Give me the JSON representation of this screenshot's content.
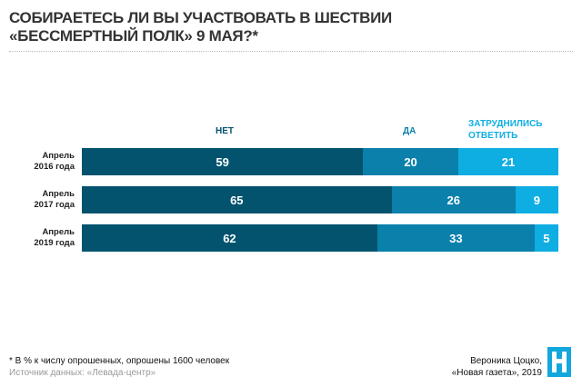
{
  "chart_data": {
    "type": "bar",
    "stacked": true,
    "orientation": "horizontal",
    "title": "СОБИРАЕТЕСЬ ЛИ ВЫ УЧАСТВОВАТЬ В ШЕСТВИИ «БЕССМЕРТНЫЙ ПОЛК» 9 МАЯ?*",
    "title_lines": [
      "СОБИРАЕТЕСЬ ЛИ ВЫ УЧАСТВОВАТЬ В ШЕСТВИИ",
      "«БЕССМЕРТНЫЙ ПОЛК» 9 МАЯ?*"
    ],
    "categories": [
      [
        "Апрель",
        "2016 года"
      ],
      [
        "Апрель",
        "2017 года"
      ],
      [
        "Апрель",
        "2019 года"
      ]
    ],
    "series": [
      {
        "name": "НЕТ",
        "color": "#03536f",
        "values": [
          59,
          65,
          62
        ]
      },
      {
        "name": "ДА",
        "color": "#0a80ab",
        "values": [
          20,
          26,
          33
        ]
      },
      {
        "name": "ЗАТРУДНИЛИСЬ ОТВЕТИТЬ",
        "name_lines": [
          "ЗАТРУДНИЛИСЬ",
          "ОТВЕТИТЬ"
        ],
        "color": "#0eaee3",
        "values": [
          21,
          9,
          5
        ]
      }
    ],
    "xlim": [
      0,
      100
    ],
    "unit": "%"
  },
  "footer": {
    "note": "* В % к числу опрошенных, опрошены 1600 человек",
    "source": "Источник данных: «Левада-центр»",
    "author": "Вероника Цоцко,",
    "publication": "«Новая газета», 2019"
  }
}
